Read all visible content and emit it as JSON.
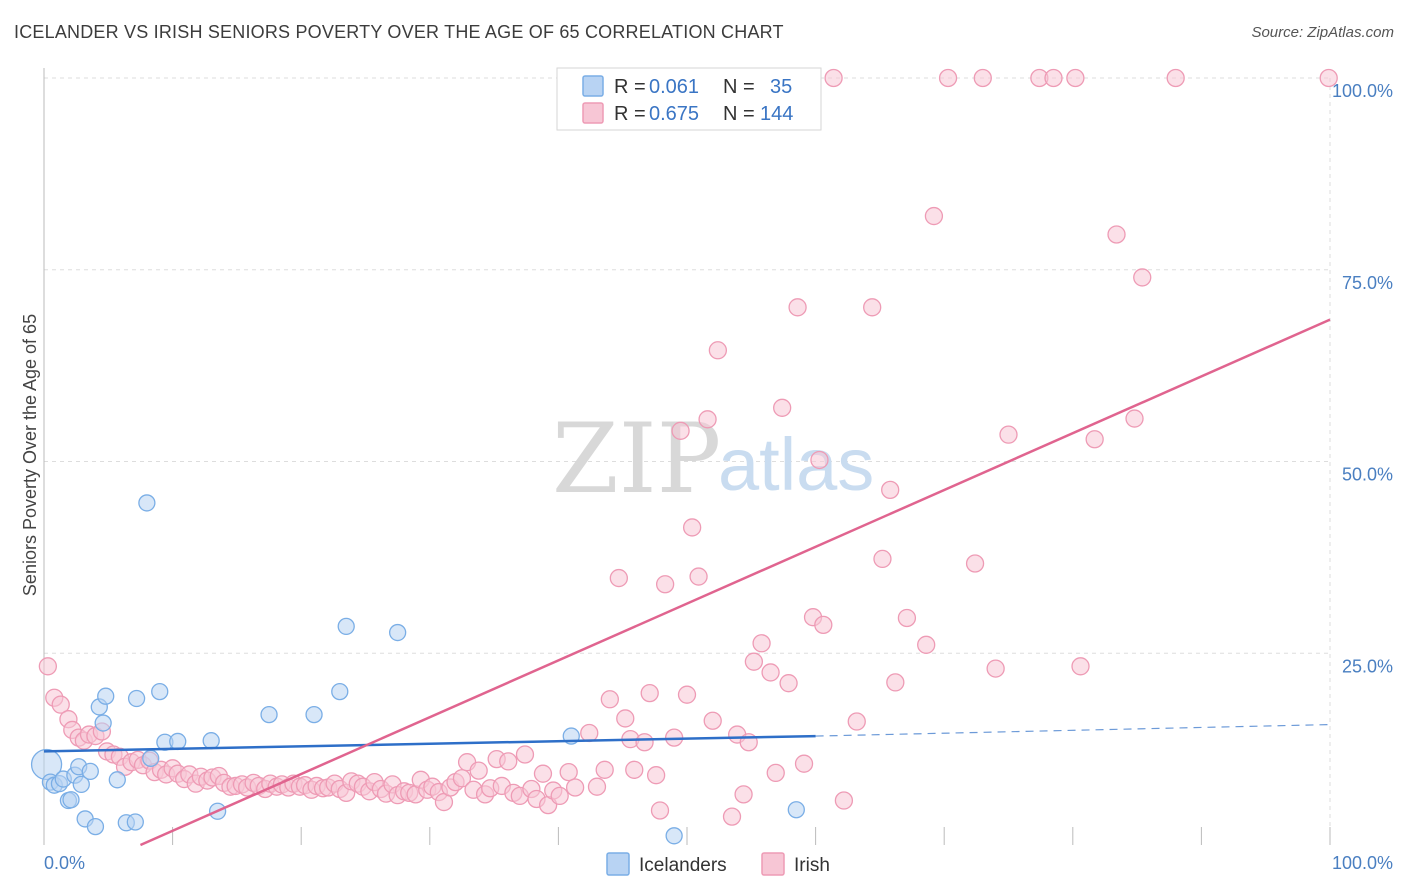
{
  "header": {
    "title": "ICELANDER VS IRISH SENIORS POVERTY OVER THE AGE OF 65 CORRELATION CHART",
    "source": "Source: ZipAtlas.com"
  },
  "watermark": {
    "zip": "ZIP",
    "atlas": "atlas"
  },
  "colors": {
    "icelanders_fill": "#b8d3f3",
    "icelanders_stroke": "#7aaee6",
    "icelanders_line": "#2e6fc8",
    "irish_fill": "#f7c6d5",
    "irish_stroke": "#ee9bb5",
    "irish_line": "#e0648f",
    "grid": "#dddddd",
    "tick_label": "#4a7fc1"
  },
  "stats_legend": [
    {
      "r_label": "R =",
      "r_value": "0.061",
      "n_label": "N =",
      "n_value": "35"
    },
    {
      "r_label": "R =",
      "r_value": "0.675",
      "n_label": "N =",
      "n_value": "144"
    }
  ],
  "chart_data": {
    "type": "scatter",
    "xlabel": "",
    "ylabel": "Seniors Poverty Over the Age of 65",
    "xlim": [
      0,
      100
    ],
    "ylim": [
      0,
      100
    ],
    "x_tick_labels": [
      "0.0%",
      "100.0%"
    ],
    "y_ticks": [
      {
        "value": 25,
        "label": "25.0%"
      },
      {
        "value": 50,
        "label": "50.0%"
      },
      {
        "value": 75,
        "label": "75.0%"
      },
      {
        "value": 100,
        "label": "100.0%"
      }
    ],
    "grid": true,
    "legend_position": "bottom-center",
    "series": [
      {
        "name": "Icelanders",
        "trend": {
          "x_start": 0,
          "y_start": 12.2,
          "x_end": 60,
          "y_end": 14.2,
          "x_dash_end": 100,
          "y_dash_end": 15.7
        },
        "points": [
          [
            0.2,
            10.5
          ],
          [
            0.5,
            8.2
          ],
          [
            0.8,
            7.8
          ],
          [
            1.2,
            8.0
          ],
          [
            1.5,
            8.6
          ],
          [
            1.9,
            5.8
          ],
          [
            2.1,
            5.9
          ],
          [
            2.4,
            9.1
          ],
          [
            2.7,
            10.2
          ],
          [
            2.9,
            7.9
          ],
          [
            3.2,
            3.4
          ],
          [
            3.6,
            9.6
          ],
          [
            4.0,
            2.4
          ],
          [
            4.3,
            18.0
          ],
          [
            4.6,
            15.9
          ],
          [
            4.8,
            19.4
          ],
          [
            5.7,
            8.5
          ],
          [
            6.4,
            2.9
          ],
          [
            7.1,
            3.0
          ],
          [
            7.2,
            19.1
          ],
          [
            8.0,
            44.6
          ],
          [
            8.3,
            11.3
          ],
          [
            9.0,
            20.0
          ],
          [
            9.4,
            13.4
          ],
          [
            10.4,
            13.5
          ],
          [
            13.0,
            13.6
          ],
          [
            13.5,
            4.4
          ],
          [
            17.5,
            17.0
          ],
          [
            21.0,
            17.0
          ],
          [
            23.0,
            20.0
          ],
          [
            23.5,
            28.5
          ],
          [
            27.5,
            27.7
          ],
          [
            41.0,
            14.2
          ],
          [
            49.0,
            1.2
          ],
          [
            58.5,
            4.6
          ]
        ]
      },
      {
        "name": "Irish",
        "trend": {
          "x_start": 7.5,
          "y_start": 0,
          "x_end": 100,
          "y_end": 68.5
        },
        "points": [
          [
            0.3,
            23.3
          ],
          [
            0.8,
            19.2
          ],
          [
            1.3,
            18.3
          ],
          [
            1.9,
            16.4
          ],
          [
            2.2,
            15.0
          ],
          [
            2.7,
            14.0
          ],
          [
            3.1,
            13.6
          ],
          [
            3.5,
            14.4
          ],
          [
            4.0,
            14.2
          ],
          [
            4.5,
            14.8
          ],
          [
            4.9,
            12.2
          ],
          [
            5.4,
            11.8
          ],
          [
            5.9,
            11.5
          ],
          [
            6.3,
            10.2
          ],
          [
            6.8,
            10.8
          ],
          [
            7.3,
            11.1
          ],
          [
            7.7,
            10.4
          ],
          [
            8.2,
            11.0
          ],
          [
            8.6,
            9.5
          ],
          [
            9.1,
            9.8
          ],
          [
            9.5,
            9.2
          ],
          [
            10.0,
            10.0
          ],
          [
            10.4,
            9.3
          ],
          [
            10.9,
            8.6
          ],
          [
            11.3,
            9.2
          ],
          [
            11.8,
            8.0
          ],
          [
            12.2,
            8.9
          ],
          [
            12.7,
            8.4
          ],
          [
            13.1,
            8.8
          ],
          [
            13.6,
            9.0
          ],
          [
            14.0,
            8.1
          ],
          [
            14.5,
            7.6
          ],
          [
            14.9,
            7.7
          ],
          [
            15.4,
            7.9
          ],
          [
            15.8,
            7.5
          ],
          [
            16.3,
            8.1
          ],
          [
            16.7,
            7.7
          ],
          [
            17.2,
            7.3
          ],
          [
            17.6,
            8.0
          ],
          [
            18.1,
            7.6
          ],
          [
            18.5,
            7.9
          ],
          [
            19.0,
            7.5
          ],
          [
            19.4,
            8.0
          ],
          [
            19.9,
            7.6
          ],
          [
            20.3,
            7.8
          ],
          [
            20.8,
            7.2
          ],
          [
            21.2,
            7.7
          ],
          [
            21.7,
            7.4
          ],
          [
            22.1,
            7.5
          ],
          [
            22.6,
            8.0
          ],
          [
            23.0,
            7.3
          ],
          [
            23.5,
            6.8
          ],
          [
            23.9,
            8.3
          ],
          [
            24.4,
            8.0
          ],
          [
            24.8,
            7.6
          ],
          [
            25.3,
            7.0
          ],
          [
            25.7,
            8.2
          ],
          [
            26.2,
            7.3
          ],
          [
            26.6,
            6.7
          ],
          [
            27.1,
            7.9
          ],
          [
            27.5,
            6.5
          ],
          [
            28.0,
            7.0
          ],
          [
            28.4,
            6.8
          ],
          [
            28.9,
            6.6
          ],
          [
            29.3,
            8.5
          ],
          [
            29.8,
            7.2
          ],
          [
            30.2,
            7.6
          ],
          [
            30.7,
            6.9
          ],
          [
            31.1,
            5.6
          ],
          [
            31.6,
            7.5
          ],
          [
            32.0,
            8.2
          ],
          [
            32.5,
            8.7
          ],
          [
            32.9,
            10.8
          ],
          [
            33.4,
            7.2
          ],
          [
            33.8,
            9.7
          ],
          [
            34.3,
            6.6
          ],
          [
            34.7,
            7.4
          ],
          [
            35.2,
            11.2
          ],
          [
            35.6,
            7.7
          ],
          [
            36.1,
            10.9
          ],
          [
            36.5,
            6.8
          ],
          [
            37.0,
            6.4
          ],
          [
            37.4,
            11.8
          ],
          [
            37.9,
            7.3
          ],
          [
            38.3,
            6.0
          ],
          [
            38.8,
            9.3
          ],
          [
            39.2,
            5.2
          ],
          [
            39.6,
            7.1
          ],
          [
            40.1,
            6.4
          ],
          [
            40.8,
            9.5
          ],
          [
            41.3,
            7.5
          ],
          [
            42.4,
            14.6
          ],
          [
            43.0,
            7.6
          ],
          [
            43.6,
            9.8
          ],
          [
            44.0,
            19.0
          ],
          [
            44.7,
            34.8
          ],
          [
            45.2,
            16.5
          ],
          [
            45.6,
            13.8
          ],
          [
            45.9,
            9.8
          ],
          [
            46.7,
            13.4
          ],
          [
            47.1,
            19.8
          ],
          [
            47.6,
            9.1
          ],
          [
            47.9,
            4.5
          ],
          [
            48.3,
            34.0
          ],
          [
            49.0,
            14.0
          ],
          [
            49.5,
            54.0
          ],
          [
            50.0,
            19.6
          ],
          [
            50.4,
            41.4
          ],
          [
            50.9,
            35.0
          ],
          [
            51.6,
            55.5
          ],
          [
            52.0,
            16.2
          ],
          [
            52.4,
            64.5
          ],
          [
            53.5,
            3.7
          ],
          [
            53.9,
            14.4
          ],
          [
            54.4,
            6.6
          ],
          [
            54.8,
            13.4
          ],
          [
            55.2,
            23.9
          ],
          [
            55.8,
            26.3
          ],
          [
            56.5,
            22.5
          ],
          [
            56.9,
            9.4
          ],
          [
            57.4,
            57.0
          ],
          [
            57.9,
            21.1
          ],
          [
            58.6,
            70.1
          ],
          [
            59.1,
            10.6
          ],
          [
            59.8,
            29.7
          ],
          [
            60.3,
            50.2
          ],
          [
            60.6,
            28.7
          ],
          [
            61.4,
            100.0
          ],
          [
            62.2,
            5.8
          ],
          [
            63.2,
            16.1
          ],
          [
            64.4,
            70.1
          ],
          [
            65.2,
            37.3
          ],
          [
            65.8,
            46.3
          ],
          [
            66.2,
            21.2
          ],
          [
            67.1,
            29.6
          ],
          [
            68.6,
            26.1
          ],
          [
            69.2,
            82.0
          ],
          [
            70.3,
            100.0
          ],
          [
            72.4,
            36.7
          ],
          [
            73.0,
            100.0
          ],
          [
            74.0,
            23.0
          ],
          [
            75.0,
            53.5
          ],
          [
            77.4,
            100.0
          ],
          [
            78.5,
            100.0
          ],
          [
            80.2,
            100.0
          ],
          [
            80.6,
            23.3
          ],
          [
            81.7,
            52.9
          ],
          [
            83.4,
            79.6
          ],
          [
            84.8,
            55.6
          ],
          [
            85.4,
            74.0
          ],
          [
            88.0,
            100.0
          ],
          [
            99.9,
            100.0
          ]
        ]
      }
    ]
  }
}
